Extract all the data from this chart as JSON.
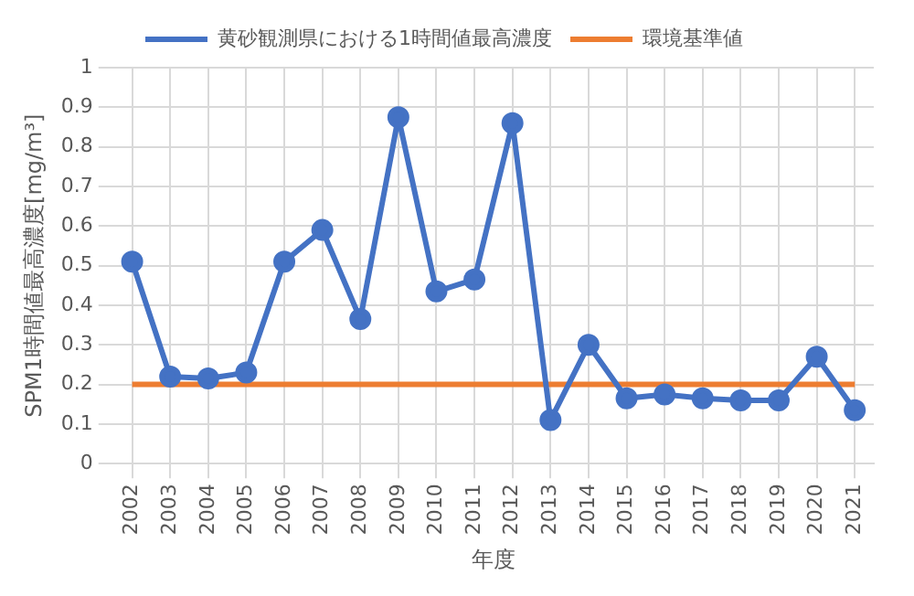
{
  "chart_data": {
    "type": "line",
    "xlabel": "年度",
    "ylabel": "SPM1時間値最高濃度[mg/m³]",
    "categories": [
      "2002",
      "2003",
      "2004",
      "2005",
      "2006",
      "2007",
      "2008",
      "2009",
      "2010",
      "2011",
      "2012",
      "2013",
      "2014",
      "2015",
      "2016",
      "2017",
      "2018",
      "2019",
      "2020",
      "2021"
    ],
    "series": [
      {
        "name": "黄砂観測県における1時間値最高濃度",
        "color": "#4472c4",
        "marker": "circle",
        "values": [
          0.51,
          0.22,
          0.215,
          0.23,
          0.51,
          0.59,
          0.365,
          0.875,
          0.435,
          0.465,
          0.86,
          0.11,
          0.3,
          0.165,
          0.175,
          0.165,
          0.16,
          0.16,
          0.27,
          0.135
        ]
      },
      {
        "name": "環境基準値",
        "color": "#ed7d31",
        "marker": "none",
        "values": [
          0.2,
          0.2,
          0.2,
          0.2,
          0.2,
          0.2,
          0.2,
          0.2,
          0.2,
          0.2,
          0.2,
          0.2,
          0.2,
          0.2,
          0.2,
          0.2,
          0.2,
          0.2,
          0.2,
          0.2
        ]
      }
    ],
    "ylim": [
      0,
      1
    ],
    "yticks": [
      0,
      0.1,
      0.2,
      0.3,
      0.4,
      0.5,
      0.6,
      0.7,
      0.8,
      0.9,
      1
    ],
    "grid": true,
    "legend": "top",
    "line_style": "solid"
  }
}
